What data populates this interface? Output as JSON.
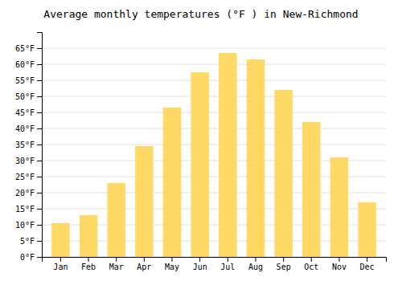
{
  "chart_data": {
    "type": "bar",
    "title": "Average monthly temperatures (°F ) in New-Richmond",
    "categories": [
      "Jan",
      "Feb",
      "Mar",
      "Apr",
      "May",
      "Jun",
      "Jul",
      "Aug",
      "Sep",
      "Oct",
      "Nov",
      "Dec"
    ],
    "values": [
      10.5,
      13.0,
      23.0,
      34.5,
      46.5,
      57.5,
      63.5,
      61.5,
      52.0,
      42.0,
      31.0,
      17.0
    ],
    "color": "#FFD966",
    "ylim": [
      0,
      70
    ],
    "yticks": [
      {
        "value": 0,
        "label": "0°F"
      },
      {
        "value": 5,
        "label": "5°F"
      },
      {
        "value": 10,
        "label": "10°F"
      },
      {
        "value": 15,
        "label": "15°F"
      },
      {
        "value": 20,
        "label": "20°F"
      },
      {
        "value": 25,
        "label": "25°F"
      },
      {
        "value": 30,
        "label": "30°F"
      },
      {
        "value": 35,
        "label": "35°F"
      },
      {
        "value": 40,
        "label": "40°F"
      },
      {
        "value": 45,
        "label": "45°F"
      },
      {
        "value": 50,
        "label": "50°F"
      },
      {
        "value": 55,
        "label": "55°F"
      },
      {
        "value": 60,
        "label": "60°F"
      },
      {
        "value": 65,
        "label": "65°F"
      }
    ],
    "grid": true
  }
}
